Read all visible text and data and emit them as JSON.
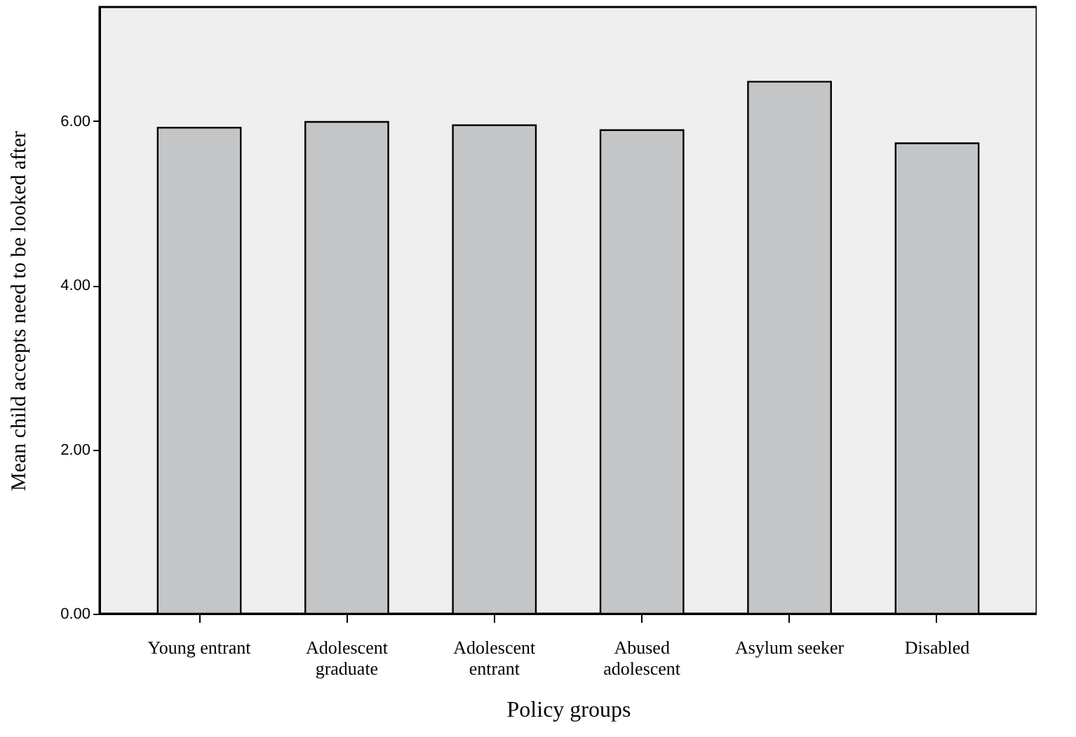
{
  "chart_data": {
    "type": "bar",
    "xlabel": "Policy groups",
    "ylabel": "Mean child accepts need to be looked after",
    "categories": [
      "Young entrant",
      "Adolescent\ngraduate",
      "Adolescent\nentrant",
      "Abused\nadolescent",
      "Asylum seeker",
      "Disabled"
    ],
    "values": [
      5.92,
      5.99,
      5.95,
      5.89,
      6.48,
      5.73
    ],
    "color": "#c4c5c7",
    "ylim": [
      0,
      7.39
    ],
    "yticks": [
      {
        "value": 0,
        "label": "0.00"
      },
      {
        "value": 2,
        "label": "2.00"
      },
      {
        "value": 4,
        "label": "4.00"
      },
      {
        "value": 6,
        "label": "6.00"
      }
    ],
    "grid": false
  }
}
